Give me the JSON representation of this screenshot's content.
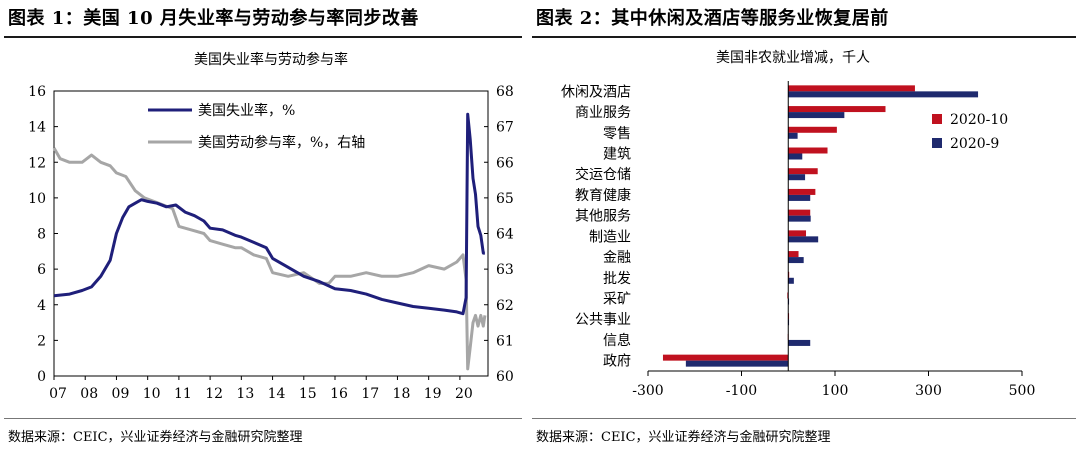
{
  "figures": [
    {
      "heading": "图表 1：美国 10 月失业率与劳动参与率同步改善",
      "source": "数据来源：CEIC，兴业证券经济与金融研究院整理"
    },
    {
      "heading": "图表 2：其中休闲及酒店等服务业恢复居前",
      "source": "数据来源：CEIC，兴业证券经济与金融研究院整理"
    }
  ],
  "chart_data": [
    {
      "type": "line",
      "title": "美国失业率与劳动参与率",
      "x_ticks": [
        "07",
        "08",
        "09",
        "10",
        "11",
        "12",
        "13",
        "14",
        "15",
        "16",
        "17",
        "18",
        "19",
        "20"
      ],
      "xlim": [
        2007.0,
        2020.9
      ],
      "ylim_left": [
        0,
        16
      ],
      "y_ticks_left": [
        0,
        2,
        4,
        6,
        8,
        10,
        12,
        14,
        16
      ],
      "ylim_right": [
        60,
        68
      ],
      "y_ticks_right": [
        60,
        61,
        62,
        63,
        64,
        65,
        66,
        67,
        68
      ],
      "legend_position": "top-center",
      "colors": {
        "unemployment": "#1f1f7a",
        "participation": "#a6a6a6"
      },
      "series": [
        {
          "name": "美国失业率，%",
          "axis": "left",
          "x": [
            2007.0,
            2007.5,
            2007.9,
            2008.2,
            2008.5,
            2008.8,
            2009.0,
            2009.2,
            2009.4,
            2009.6,
            2009.8,
            2010.0,
            2010.3,
            2010.6,
            2010.9,
            2011.2,
            2011.5,
            2011.8,
            2012.0,
            2012.4,
            2012.8,
            2013.0,
            2013.4,
            2013.8,
            2014.0,
            2014.4,
            2014.8,
            2015.0,
            2015.5,
            2016.0,
            2016.5,
            2017.0,
            2017.5,
            2018.0,
            2018.5,
            2019.0,
            2019.5,
            2019.9,
            2020.1,
            2020.2,
            2020.25,
            2020.33,
            2020.42,
            2020.5,
            2020.58,
            2020.67,
            2020.75,
            2020.8
          ],
          "values": [
            4.5,
            4.6,
            4.8,
            5.0,
            5.6,
            6.5,
            8.0,
            8.9,
            9.5,
            9.7,
            9.9,
            9.8,
            9.7,
            9.5,
            9.6,
            9.2,
            9.0,
            8.7,
            8.3,
            8.2,
            7.9,
            7.8,
            7.5,
            7.2,
            6.6,
            6.2,
            5.8,
            5.6,
            5.3,
            4.9,
            4.8,
            4.6,
            4.3,
            4.1,
            3.9,
            3.8,
            3.7,
            3.6,
            3.5,
            4.4,
            14.7,
            13.3,
            11.1,
            10.2,
            8.4,
            7.9,
            6.9,
            6.9
          ]
        },
        {
          "name": "美国劳动参与率，%，右轴",
          "axis": "right",
          "x": [
            2007.0,
            2007.2,
            2007.5,
            2007.9,
            2008.2,
            2008.5,
            2008.8,
            2009.0,
            2009.3,
            2009.6,
            2009.9,
            2010.2,
            2010.5,
            2010.8,
            2011.0,
            2011.4,
            2011.8,
            2012.0,
            2012.4,
            2012.8,
            2013.0,
            2013.4,
            2013.8,
            2014.0,
            2014.5,
            2015.0,
            2015.5,
            2015.8,
            2016.0,
            2016.5,
            2017.0,
            2017.5,
            2018.0,
            2018.5,
            2019.0,
            2019.5,
            2019.9,
            2020.1,
            2020.2,
            2020.25,
            2020.33,
            2020.42,
            2020.5,
            2020.58,
            2020.67,
            2020.75,
            2020.8
          ],
          "values": [
            66.4,
            66.1,
            66.0,
            66.0,
            66.2,
            66.0,
            65.9,
            65.7,
            65.6,
            65.2,
            65.0,
            64.9,
            64.8,
            64.7,
            64.2,
            64.1,
            64.0,
            63.8,
            63.7,
            63.6,
            63.6,
            63.4,
            63.3,
            62.9,
            62.8,
            62.9,
            62.6,
            62.6,
            62.8,
            62.8,
            62.9,
            62.8,
            62.8,
            62.9,
            63.1,
            63.0,
            63.2,
            63.4,
            62.7,
            60.2,
            60.8,
            61.5,
            61.7,
            61.4,
            61.7,
            61.4,
            61.7
          ]
        }
      ]
    },
    {
      "type": "bar",
      "orientation": "horizontal",
      "title": "美国非农就业增减，千人",
      "categories": [
        "休闲及酒店",
        "商业服务",
        "零售",
        "建筑",
        "交运仓储",
        "教育健康",
        "其他服务",
        "制造业",
        "金融",
        "批发",
        "采矿",
        "公共事业",
        "信息",
        "政府"
      ],
      "xlim": [
        -300,
        500
      ],
      "x_ticks": [
        -300,
        -100,
        100,
        300,
        500
      ],
      "legend_position": "right",
      "colors": {
        "2020-10": "#c0111f",
        "2020-9": "#1f2a6e"
      },
      "series": [
        {
          "name": "2020-10",
          "values": [
            271,
            208,
            104,
            84,
            63,
            58,
            47,
            38,
            22,
            2,
            -2,
            0,
            -1,
            -268
          ]
        },
        {
          "name": "2020-9",
          "values": [
            406,
            120,
            20,
            30,
            36,
            47,
            48,
            64,
            33,
            12,
            1,
            1,
            47,
            -219
          ]
        }
      ]
    }
  ]
}
